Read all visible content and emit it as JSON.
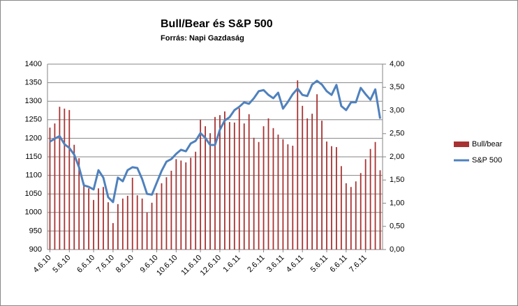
{
  "chart_data": {
    "type": "combo",
    "title": "Bull/Bear és S&P 500",
    "subtitle": "Forrás: Napi Gazdaság",
    "categories": [
      "4.6.10",
      null,
      null,
      null,
      "5.6.10",
      null,
      null,
      null,
      null,
      "6.6.10",
      null,
      null,
      null,
      "7.6.10",
      null,
      null,
      null,
      "8.6.10",
      null,
      null,
      null,
      null,
      "9.6.10",
      null,
      null,
      null,
      "10.6.10",
      null,
      null,
      null,
      null,
      "11.6.10",
      null,
      null,
      null,
      "12.6.10",
      null,
      null,
      null,
      "1.6.11",
      null,
      null,
      null,
      null,
      "2.6.11",
      null,
      null,
      null,
      "3.6.11",
      null,
      null,
      null,
      "4.6.11",
      null,
      null,
      null,
      null,
      "5.6.11",
      null,
      null,
      null,
      "6.6.11",
      null,
      null,
      null,
      "7.6.11",
      null,
      null,
      null
    ],
    "series": [
      {
        "name": "Bull/bear",
        "type": "bar",
        "axis": "y2",
        "color": "#a83232",
        "values": [
          2.63,
          2.72,
          3.08,
          3.04,
          3.01,
          2.26,
          1.97,
          1.44,
          1.32,
          1.07,
          1.32,
          1.35,
          1.02,
          0.57,
          0.98,
          1.1,
          1.16,
          1.55,
          1.17,
          1.1,
          0.8,
          1.01,
          1.22,
          1.43,
          1.56,
          1.7,
          1.95,
          1.92,
          1.88,
          1.98,
          2.11,
          2.8,
          2.66,
          2.51,
          2.86,
          2.9,
          2.98,
          2.75,
          2.74,
          3.05,
          2.72,
          2.92,
          2.41,
          2.32,
          2.66,
          2.83,
          2.62,
          2.48,
          2.38,
          2.27,
          2.24,
          3.65,
          3.1,
          2.83,
          2.93,
          3.35,
          2.78,
          2.33,
          2.23,
          2.21,
          1.8,
          1.43,
          1.35,
          1.47,
          1.65,
          1.95,
          2.17,
          2.32,
          1.71
        ]
      },
      {
        "name": "S&P 500",
        "type": "line",
        "color": "#4f81bd",
        "values": [
          1191,
          1199,
          1206,
          1184,
          1174,
          1156,
          1122,
          1073,
          1069,
          1062,
          1114,
          1094,
          1041,
          1028,
          1094,
          1084,
          1114,
          1122,
          1120,
          1090,
          1050,
          1048,
          1080,
          1112,
          1137,
          1144,
          1158,
          1169,
          1165,
          1186,
          1193,
          1214,
          1201,
          1182,
          1182,
          1223,
          1248,
          1257,
          1276,
          1285,
          1297,
          1293,
          1308,
          1327,
          1330,
          1317,
          1308,
          1323,
          1280,
          1298,
          1319,
          1334,
          1317,
          1314,
          1345,
          1355,
          1345,
          1327,
          1317,
          1344,
          1287,
          1276,
          1297,
          1297,
          1336,
          1319,
          1304,
          1332,
          1253
        ]
      }
    ],
    "ylim": [
      900,
      1400
    ],
    "yticks": [
      900,
      950,
      1000,
      1050,
      1100,
      1150,
      1200,
      1250,
      1300,
      1350,
      1400
    ],
    "y2lim": [
      0,
      4
    ],
    "y2ticks": [
      {
        "value": 0,
        "label": "0,00"
      },
      {
        "value": 0.5,
        "label": "0,50"
      },
      {
        "value": 1,
        "label": "1,00"
      },
      {
        "value": 1.5,
        "label": "1,50"
      },
      {
        "value": 2,
        "label": "2,00"
      },
      {
        "value": 2.5,
        "label": "2,50"
      },
      {
        "value": 3,
        "label": "3,00"
      },
      {
        "value": 3.5,
        "label": "3,50"
      },
      {
        "value": 4,
        "label": "4,00"
      }
    ],
    "grid": true,
    "legend": "right"
  }
}
